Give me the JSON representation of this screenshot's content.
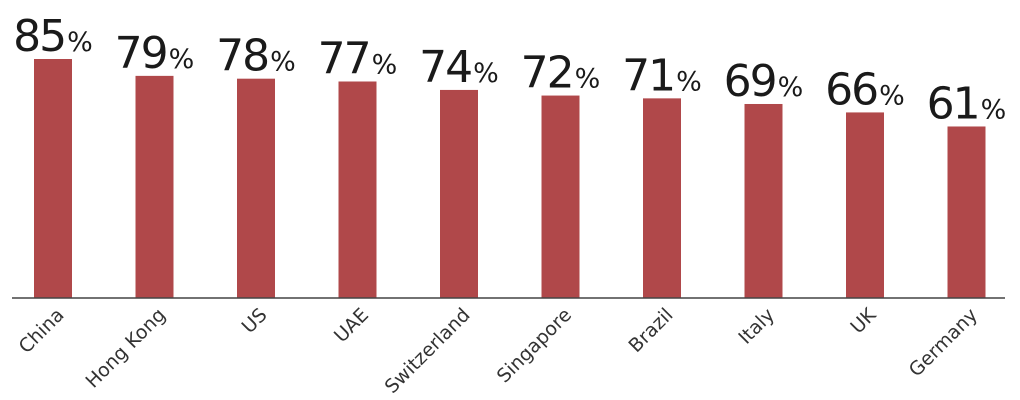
{
  "chart_data": {
    "type": "bar",
    "categories": [
      "China",
      "Hong Kong",
      "US",
      "UAE",
      "Switzerland",
      "Singapore",
      "Brazil",
      "Italy",
      "UK",
      "Germany"
    ],
    "values": [
      85,
      79,
      78,
      77,
      74,
      72,
      71,
      69,
      66,
      61
    ],
    "value_suffix": "%",
    "ylim": [
      0,
      85
    ],
    "grid": false,
    "legend": "none",
    "bar_color": "#b0484a"
  }
}
